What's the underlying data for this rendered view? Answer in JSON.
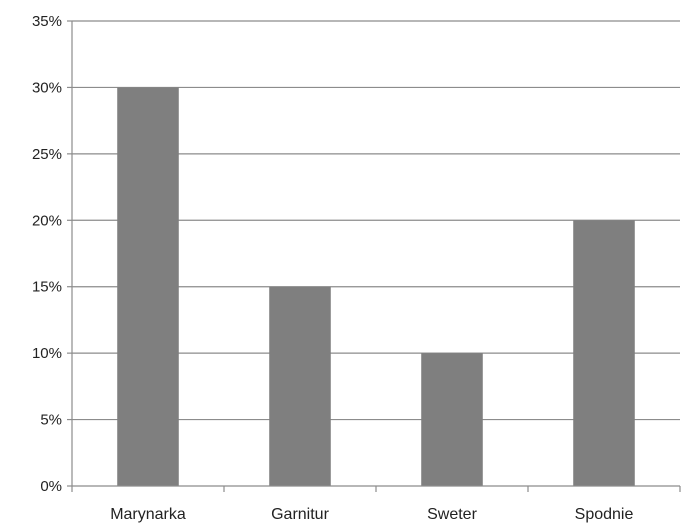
{
  "chart_data": {
    "type": "bar",
    "title": "",
    "xlabel": "",
    "ylabel": "",
    "categories": [
      "Marynarka",
      "Garnitur",
      "Sweter",
      "Spodnie"
    ],
    "values": [
      30,
      15,
      10,
      20
    ],
    "value_format": "percent",
    "ylim": [
      0,
      35
    ],
    "yticks": [
      0,
      5,
      10,
      15,
      20,
      25,
      30,
      35
    ],
    "ytick_labels": [
      "0%",
      "5%",
      "10%",
      "15%",
      "20%",
      "25%",
      "30%",
      "35%"
    ],
    "grid": true,
    "legend": "none",
    "colors": {
      "bar": "#7f7f7f",
      "grid": "#8c8c8c",
      "axis": "#8c8c8c"
    }
  }
}
